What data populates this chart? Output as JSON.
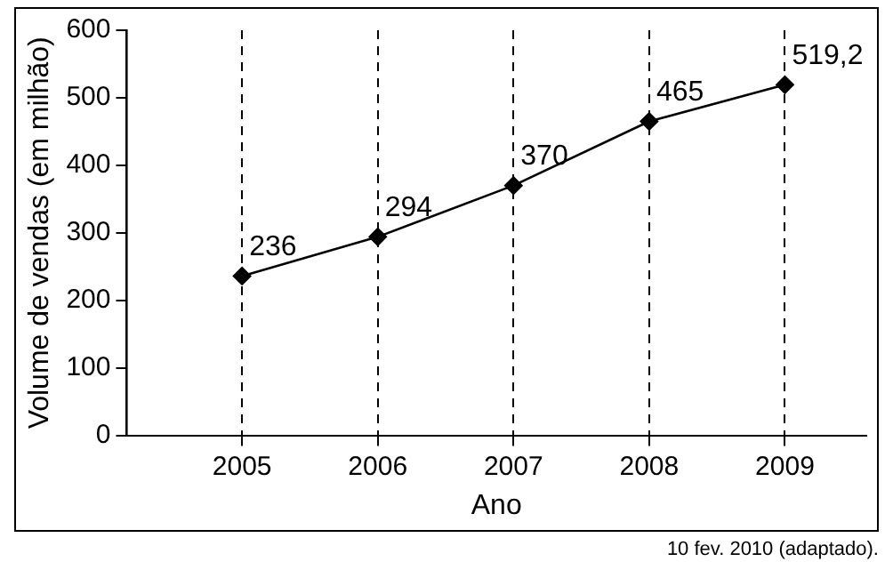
{
  "chart_data": {
    "type": "line",
    "xlabel": "Ano",
    "ylabel": "Volume de vendas (em milhão)",
    "x": [
      2005,
      2006,
      2007,
      2008,
      2009
    ],
    "series": [
      {
        "color": "#000000",
        "values": [
          236,
          294,
          370,
          465,
          519.2
        ],
        "value_labels": [
          "236",
          "294",
          "370",
          "465",
          "519,2"
        ]
      }
    ],
    "xlim": [
      2004.15,
      2009.6
    ],
    "xticks": [
      2005,
      2006,
      2007,
      2008,
      2009
    ],
    "ylim": [
      0,
      600
    ],
    "yticks": [
      0,
      100,
      200,
      300,
      400,
      500,
      600
    ],
    "grid": "x",
    "marker": "diamond",
    "line_style": "solid",
    "legend": false,
    "annotations": [
      "10 fev. 2010 (adaptado)."
    ]
  }
}
